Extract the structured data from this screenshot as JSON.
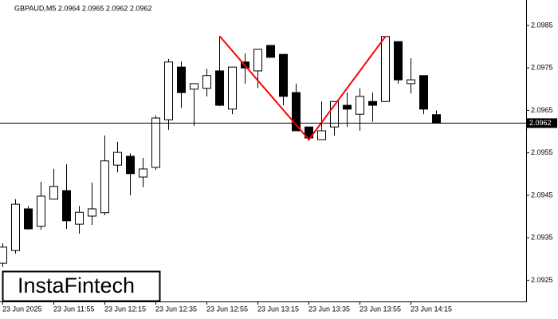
{
  "chart_data": {
    "type": "candlestick",
    "title": "GBPAUD,M5  2.0964 2.0965 2.0962 2.0962",
    "categories": [
      "23 Jun 2025",
      null,
      null,
      null,
      "23 Jun 11:55",
      null,
      null,
      null,
      "23 Jun 12:15",
      null,
      null,
      null,
      "23 Jun 12:35",
      null,
      null,
      null,
      "23 Jun 12:55",
      null,
      null,
      null,
      "23 Jun 13:15",
      null,
      null,
      null,
      "23 Jun 13:35",
      null,
      null,
      null,
      "23 Jun 13:55",
      null,
      null,
      null,
      "23 Jun 14:15",
      null,
      null
    ],
    "open": [
      2.0929,
      2.0932,
      2.09418,
      2.09377,
      2.09441,
      2.09461,
      2.09382,
      2.09401,
      2.09409,
      2.09521,
      2.09542,
      2.09493,
      2.09516,
      2.09628,
      2.09752,
      2.097,
      2.09702,
      2.09743,
      2.09653,
      2.09764,
      2.09743,
      2.09803,
      2.09782,
      2.09692,
      2.09611,
      2.09581,
      2.09611,
      2.09662,
      2.09641,
      2.09671,
      2.09671,
      2.09812,
      2.09713,
      2.09732,
      2.0964
    ],
    "high": [
      2.09337,
      2.09441,
      2.09425,
      2.09482,
      2.09512,
      2.09523,
      2.09425,
      2.0948,
      2.09591,
      2.09576,
      2.09549,
      2.09538,
      2.09638,
      2.09771,
      2.09765,
      2.09713,
      2.09748,
      2.09825,
      2.09752,
      2.09784,
      2.09794,
      2.09803,
      2.09782,
      2.09713,
      2.09611,
      2.09671,
      2.09671,
      2.09692,
      2.09702,
      2.09692,
      2.09824,
      2.09812,
      2.09773,
      2.09732,
      2.0965
    ],
    "low": [
      2.09281,
      2.09313,
      2.09369,
      2.09369,
      2.09441,
      2.09371,
      2.0936,
      2.0938,
      2.09403,
      2.09504,
      2.0945,
      2.09469,
      2.0951,
      2.09604,
      2.09656,
      2.09613,
      2.09683,
      2.0966,
      2.09641,
      2.09713,
      2.09703,
      2.09775,
      2.09662,
      2.09602,
      2.09581,
      2.09581,
      2.09591,
      2.09611,
      2.09602,
      2.09623,
      2.09671,
      2.09713,
      2.0969,
      2.09641,
      2.0962
    ],
    "close": [
      2.09328,
      2.09429,
      2.09371,
      2.09448,
      2.09471,
      2.0939,
      2.0941,
      2.09418,
      2.09531,
      2.09551,
      2.09501,
      2.09512,
      2.09632,
      2.09764,
      2.09692,
      2.09713,
      2.09732,
      2.09662,
      2.09752,
      2.0975,
      2.09794,
      2.09775,
      2.09683,
      2.09602,
      2.09585,
      2.09602,
      2.09671,
      2.09653,
      2.09683,
      2.09662,
      2.09824,
      2.09722,
      2.09722,
      2.09653,
      2.0962
    ],
    "up_color": "#ffffff",
    "down_color": "#000000",
    "ylim": [
      2.092,
      2.0991
    ],
    "yticks": [
      2.0925,
      2.0935,
      2.0945,
      2.0955,
      2.0965,
      2.0975,
      2.0985
    ],
    "current_price": 2.0962,
    "pattern": {
      "color": "#ff0000",
      "points": [
        {
          "index": 17,
          "price": 2.09825
        },
        {
          "index": 24,
          "price": 2.09581
        },
        {
          "index": 30,
          "price": 2.09824
        }
      ]
    },
    "watermark": "InstaFintech"
  }
}
